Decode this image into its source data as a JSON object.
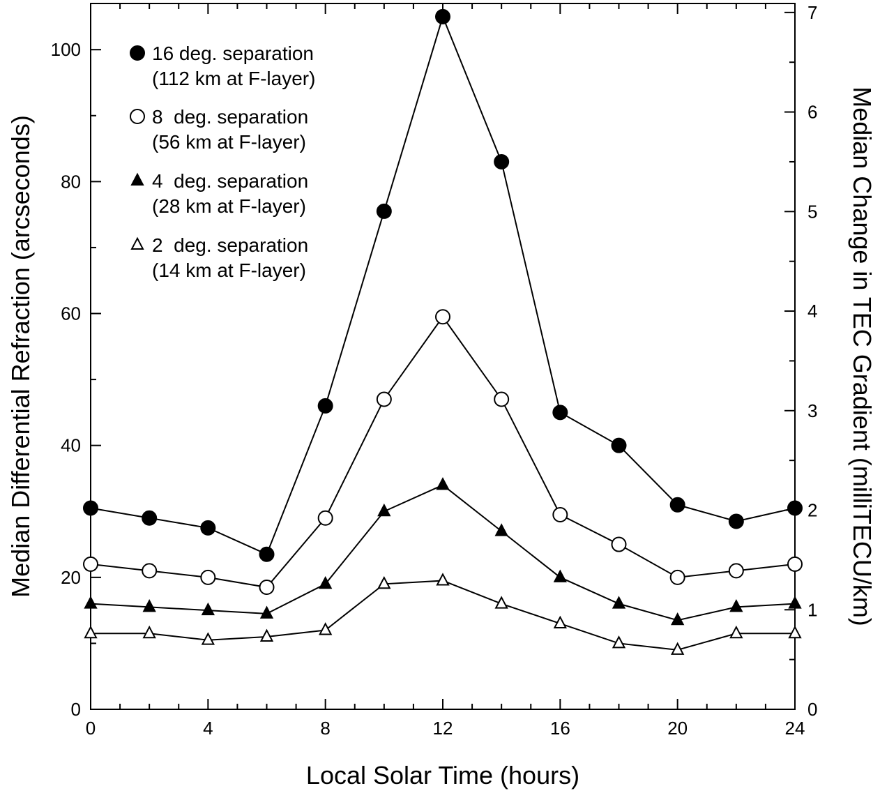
{
  "chart_data": {
    "type": "line",
    "xlabel": "Local Solar Time (hours)",
    "ylabel": "Median Differential Refraction (arcseconds)",
    "y2label": "Median Change in TEC Gradient (milliTECU/km)",
    "xlim": [
      0,
      24
    ],
    "ylim": [
      0,
      107
    ],
    "y2lim": [
      0,
      7.09
    ],
    "xticks": [
      0,
      4,
      8,
      12,
      16,
      20,
      24
    ],
    "yticks": [
      0,
      20,
      40,
      60,
      80,
      100
    ],
    "y2ticks": [
      0,
      1,
      2,
      3,
      4,
      5,
      6,
      7
    ],
    "x": [
      0,
      2,
      4,
      6,
      8,
      10,
      12,
      14,
      16,
      18,
      20,
      22,
      24
    ],
    "series": [
      {
        "name": "16 deg. separation",
        "subtitle": "(112 km at F-layer)",
        "marker": "filled-circle",
        "values": [
          30.5,
          29,
          27.5,
          23.5,
          46,
          75.5,
          105,
          83,
          45,
          40,
          31,
          28.5,
          30.5
        ]
      },
      {
        "name": "8  deg. separation",
        "subtitle": "(56 km at F-layer)",
        "marker": "open-circle",
        "values": [
          22,
          21,
          20,
          18.5,
          29,
          47,
          59.5,
          47,
          29.5,
          25,
          20,
          21,
          22
        ]
      },
      {
        "name": "4  deg. separation",
        "subtitle": "(28 km at F-layer)",
        "marker": "filled-triangle",
        "values": [
          16,
          15.5,
          15,
          14.5,
          19,
          30,
          34,
          27,
          20,
          16,
          13.5,
          15.5,
          16
        ]
      },
      {
        "name": "2  deg. separation",
        "subtitle": "(14 km at F-layer)",
        "marker": "open-triangle",
        "values": [
          11.5,
          11.5,
          10.5,
          11,
          12,
          19,
          19.5,
          16,
          13,
          10,
          9,
          11.5,
          11.5
        ]
      }
    ],
    "legend_position": "top-left",
    "grid": false
  }
}
